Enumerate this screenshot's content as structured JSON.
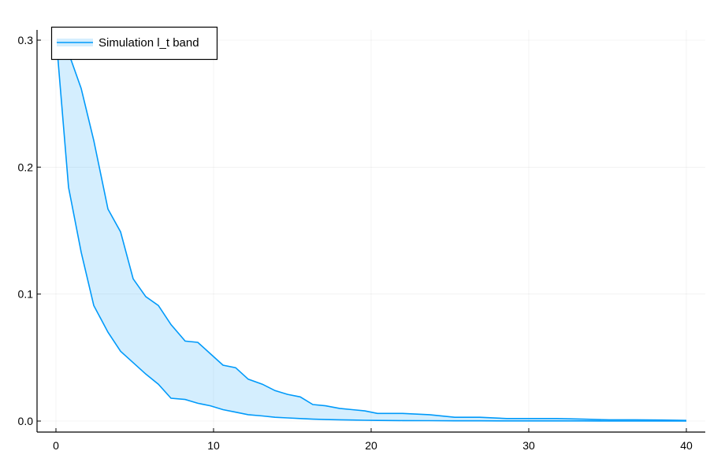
{
  "chart_data": {
    "type": "area",
    "title": "",
    "xlabel": "",
    "ylabel": "",
    "xlim": [
      0,
      40
    ],
    "ylim": [
      0,
      0.3
    ],
    "x_ticks": [
      0,
      10,
      20,
      30,
      40
    ],
    "y_ticks": [
      0.0,
      0.1,
      0.2,
      0.3
    ],
    "x_tick_labels": [
      "0",
      "10",
      "20",
      "30",
      "40"
    ],
    "y_tick_labels": [
      "0.0",
      "0.1",
      "0.2",
      "0.3"
    ],
    "grid": true,
    "legend": {
      "position": "top-left",
      "entries": [
        "Simulation l_t band"
      ]
    },
    "color": "#009AFA",
    "series": [
      {
        "name": "Simulation l_t band",
        "x": [
          0,
          0.8,
          1.6,
          2.4,
          3.3,
          4.1,
          4.9,
          5.7,
          6.5,
          7.3,
          8.2,
          9.0,
          9.8,
          10.6,
          11.4,
          12.2,
          13.1,
          13.9,
          14.7,
          15.5,
          16.3,
          17.1,
          18.0,
          18.8,
          19.6,
          20.4,
          22.0,
          23.7,
          25.3,
          26.9,
          28.6,
          30.2,
          31.8,
          33.5,
          35.1,
          36.7,
          38.4,
          40.0
        ],
        "upper": [
          0.304,
          0.29,
          0.262,
          0.221,
          0.167,
          0.149,
          0.112,
          0.098,
          0.091,
          0.076,
          0.063,
          0.062,
          0.053,
          0.044,
          0.042,
          0.033,
          0.029,
          0.024,
          0.021,
          0.019,
          0.013,
          0.012,
          0.01,
          0.009,
          0.008,
          0.006,
          0.006,
          0.005,
          0.003,
          0.003,
          0.002,
          0.002,
          0.002,
          0.0015,
          0.001,
          0.001,
          0.0008,
          0.0005
        ],
        "lower": [
          0.304,
          0.184,
          0.133,
          0.091,
          0.07,
          0.055,
          0.046,
          0.037,
          0.029,
          0.018,
          0.017,
          0.014,
          0.012,
          0.009,
          0.007,
          0.005,
          0.004,
          0.003,
          0.0025,
          0.002,
          0.0015,
          0.0012,
          0.001,
          0.0008,
          0.0006,
          0.0005,
          0.0004,
          0.0003,
          0.0002,
          0.0002,
          0.0001,
          0.0001,
          0.0001,
          0.0001,
          0.0,
          0.0,
          0.0,
          0.0
        ]
      }
    ]
  }
}
